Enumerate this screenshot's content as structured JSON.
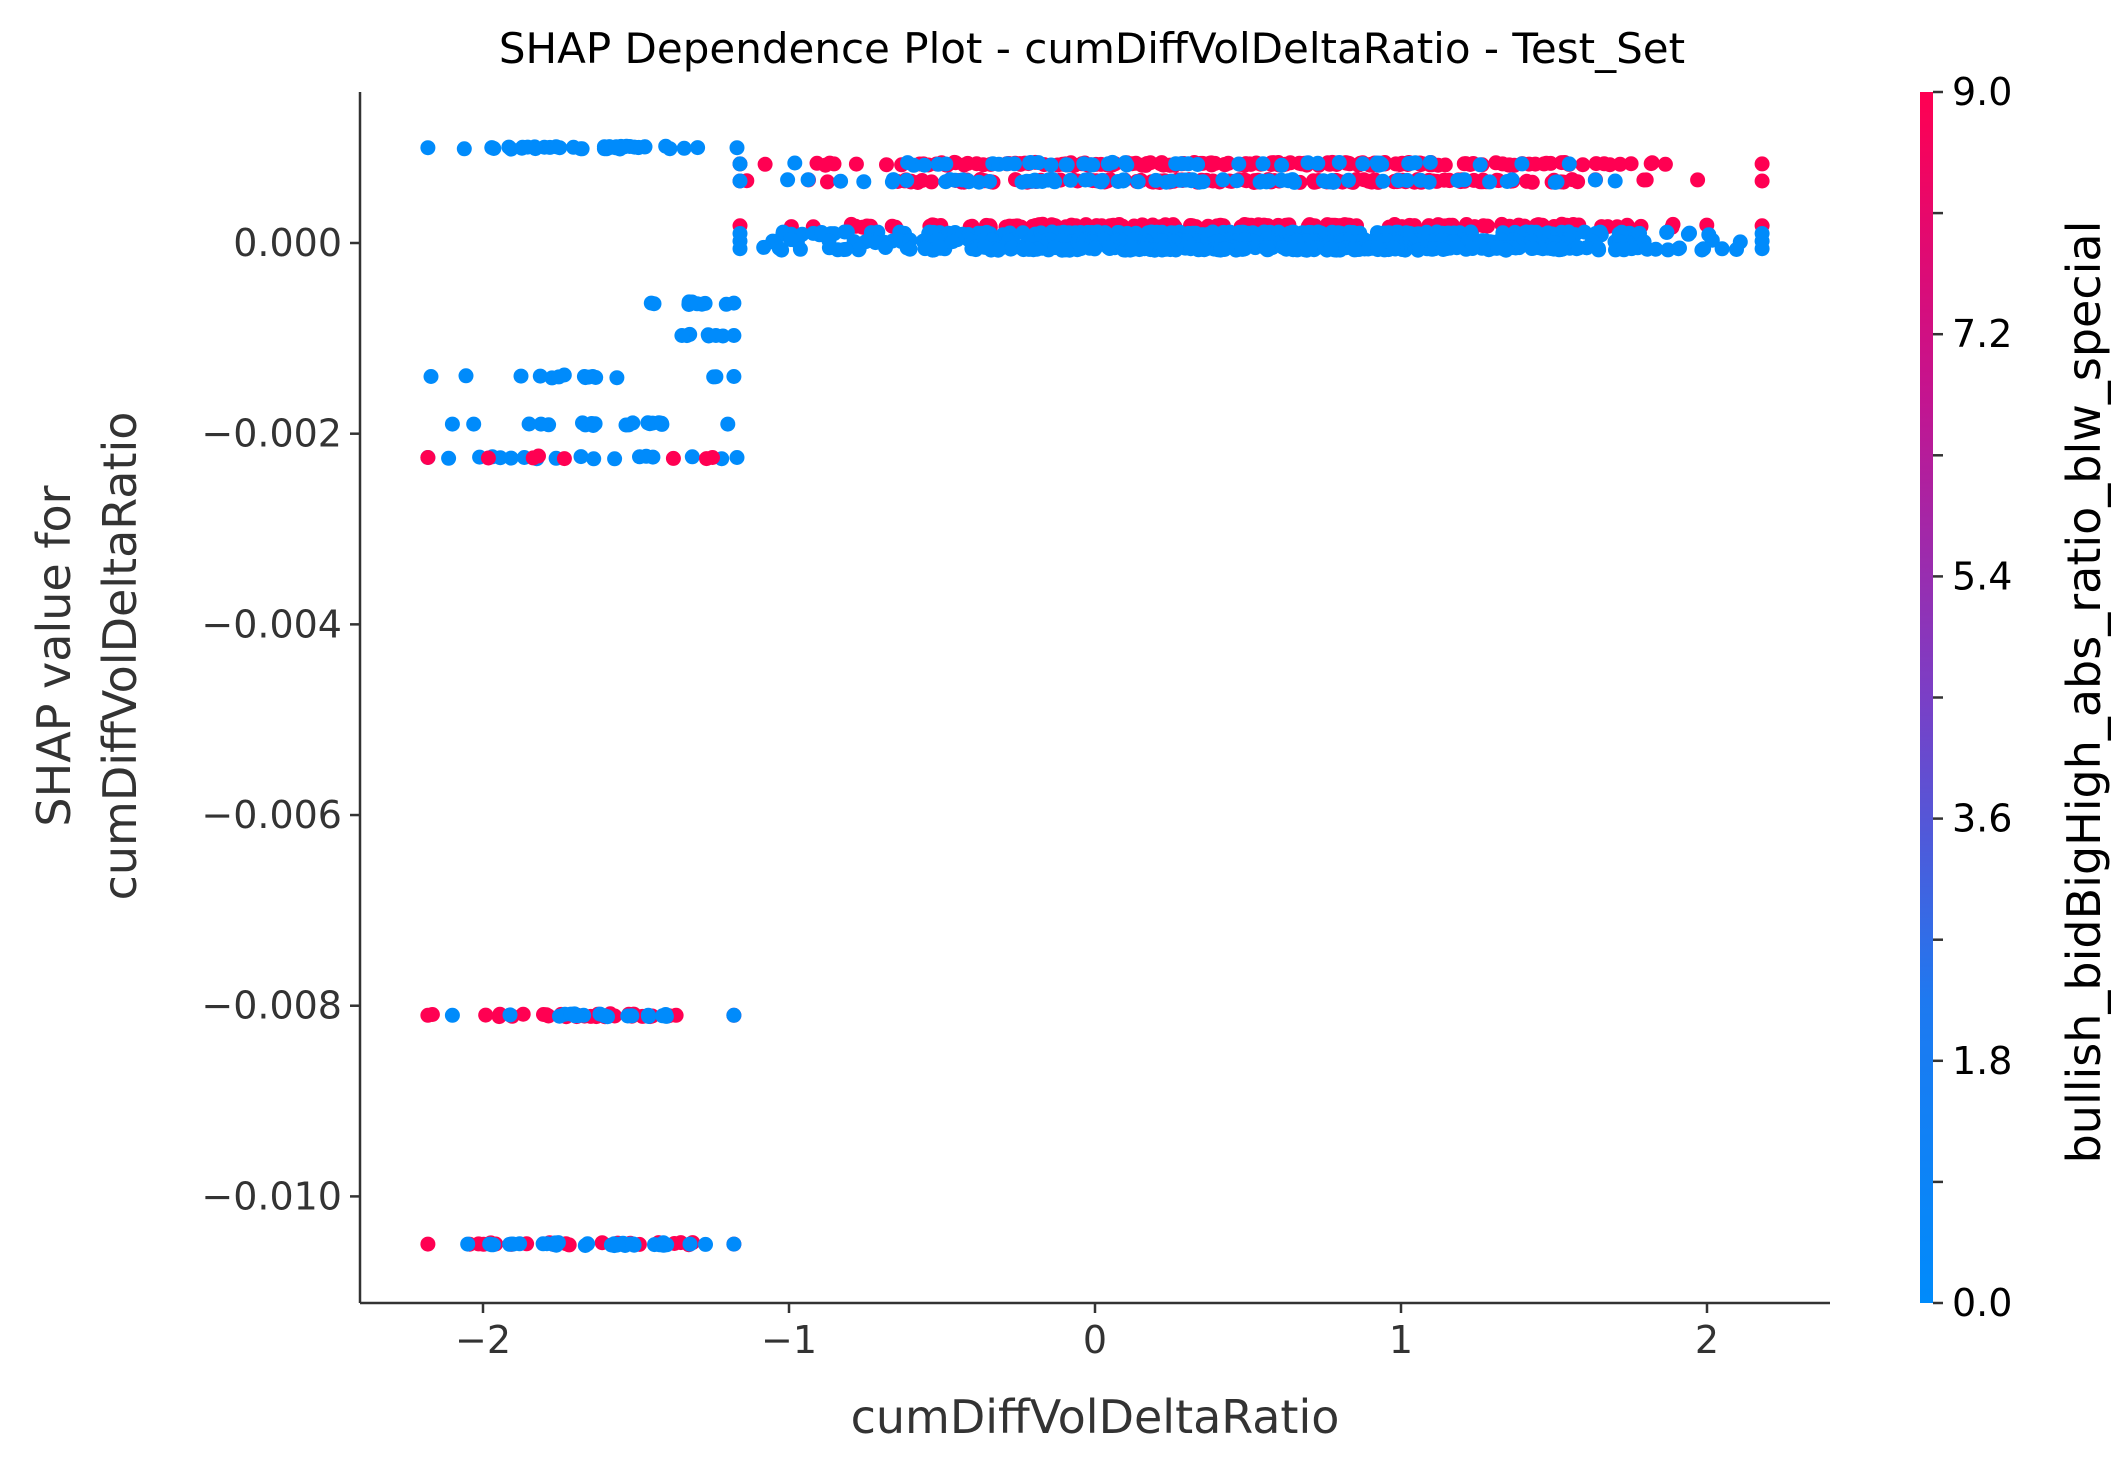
{
  "chart_data": {
    "type": "scatter",
    "title": "SHAP Dependence Plot - cumDiffVolDeltaRatio - Test_Set",
    "xlabel": "cumDiffVolDeltaRatio",
    "ylabel": [
      "SHAP value for",
      "cumDiffVolDeltaRatio"
    ],
    "xlim": [
      -2.4,
      2.4
    ],
    "ylim": [
      -0.0111,
      0.0016
    ],
    "x_ticks": [
      -2,
      -1,
      0,
      1,
      2
    ],
    "x_tick_labels": [
      "−2",
      "−1",
      "0",
      "1",
      "2"
    ],
    "y_ticks": [
      0.0,
      -0.002,
      -0.004,
      -0.006,
      -0.008,
      -0.01
    ],
    "y_tick_labels": [
      "0.000",
      "−0.002",
      "−0.004",
      "−0.006",
      "−0.008",
      "−0.010"
    ],
    "grid": false,
    "colorbar": {
      "label": "bullish_bidBigHigh_abs_ratio_blw_special",
      "range": [
        0.0,
        9.0
      ],
      "tick_labels": [
        "0.0",
        "1.8",
        "3.6",
        "5.4",
        "7.2",
        "9.0"
      ],
      "low_color": "#008bfb",
      "high_color": "#ff0052"
    },
    "clusters": [
      {
        "x_range": [
          -2.18,
          -1.17
        ],
        "y": 0.001,
        "color": 0.0,
        "n": 38
      },
      {
        "x_range": [
          -1.16,
          2.18
        ],
        "y": 0.00083,
        "color": 9.0,
        "n": 160
      },
      {
        "x_range": [
          -1.16,
          1.55
        ],
        "y": 0.00083,
        "color": 0.0,
        "n": 45
      },
      {
        "x_range": [
          -1.16,
          2.18
        ],
        "y": 0.00065,
        "color": 9.0,
        "n": 140
      },
      {
        "x_range": [
          -1.16,
          1.7
        ],
        "y": 0.00065,
        "color": 0.0,
        "n": 75
      },
      {
        "x_range": [
          -1.16,
          2.18
        ],
        "y": 0.00018,
        "color": 9.0,
        "n": 150
      },
      {
        "x_range": [
          -1.16,
          2.18
        ],
        "y": 0.0001,
        "color": 0.0,
        "n": 220
      },
      {
        "x_range": [
          -1.16,
          2.18
        ],
        "y": 2e-05,
        "color": 0.0,
        "n": 240
      },
      {
        "x_range": [
          -1.16,
          2.18
        ],
        "y": -6e-05,
        "color": 0.0,
        "n": 220
      },
      {
        "x_range": [
          -1.45,
          -1.18
        ],
        "y": -0.00063,
        "color": 0.0,
        "n": 9
      },
      {
        "x_range": [
          -1.35,
          -1.18
        ],
        "y": -0.00097,
        "color": 0.0,
        "n": 6
      },
      {
        "x_range": [
          -2.17,
          -1.18
        ],
        "y": -0.0014,
        "color": 0.0,
        "n": 14
      },
      {
        "x_range": [
          -2.1,
          -1.2
        ],
        "y": -0.0019,
        "color": 0.0,
        "n": 18
      },
      {
        "x_range": [
          -2.18,
          -1.17
        ],
        "y": -0.00225,
        "color": 0.0,
        "n": 16
      },
      {
        "x_range": [
          -2.18,
          -1.25
        ],
        "y": -0.00225,
        "color": 9.0,
        "n": 6
      },
      {
        "x_range": [
          -2.18,
          -1.18
        ],
        "y": -0.0081,
        "color": 9.0,
        "n": 30
      },
      {
        "x_range": [
          -2.1,
          -1.18
        ],
        "y": -0.0081,
        "color": 0.0,
        "n": 18
      },
      {
        "x_range": [
          -2.18,
          -1.18
        ],
        "y": -0.0105,
        "color": 9.0,
        "n": 22
      },
      {
        "x_range": [
          -2.05,
          -1.18
        ],
        "y": -0.0105,
        "color": 0.0,
        "n": 35
      }
    ]
  }
}
